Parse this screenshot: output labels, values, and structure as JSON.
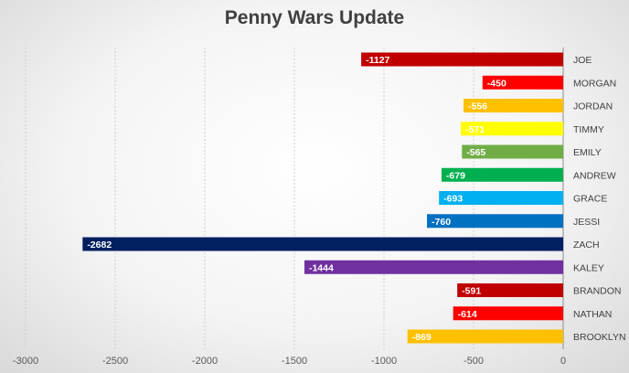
{
  "chart_data": {
    "type": "bar",
    "orientation": "horizontal",
    "title": "Penny Wars Update",
    "xlabel": "",
    "ylabel": "",
    "xlim": [
      -3000,
      0
    ],
    "x_ticks": [
      -3000,
      -2500,
      -2000,
      -1500,
      -1000,
      -500,
      0
    ],
    "grid": true,
    "legend": "none",
    "categories": [
      "JOE",
      "MORGAN",
      "JORDAN",
      "TIMMY",
      "EMILY",
      "ANDREW",
      "GRACE",
      "JESSI",
      "ZACH",
      "KALEY",
      "BRANDON",
      "NATHAN",
      "BROOKLYN"
    ],
    "values": [
      -1127,
      -450,
      -556,
      -571,
      -565,
      -679,
      -693,
      -760,
      -2682,
      -1444,
      -591,
      -614,
      -869
    ],
    "colors": [
      "#c00000",
      "#ff0000",
      "#ffc000",
      "#ffff00",
      "#70ad47",
      "#00b050",
      "#00b0f0",
      "#0070c0",
      "#002060",
      "#7030a0",
      "#c00000",
      "#ff0000",
      "#ffc000"
    ],
    "data_labels": [
      "-1127",
      "-450",
      "-556",
      "-571",
      "-565",
      "-679",
      "-693",
      "-760",
      "-2682",
      "-1444",
      "-591",
      "-614",
      "-869"
    ]
  }
}
